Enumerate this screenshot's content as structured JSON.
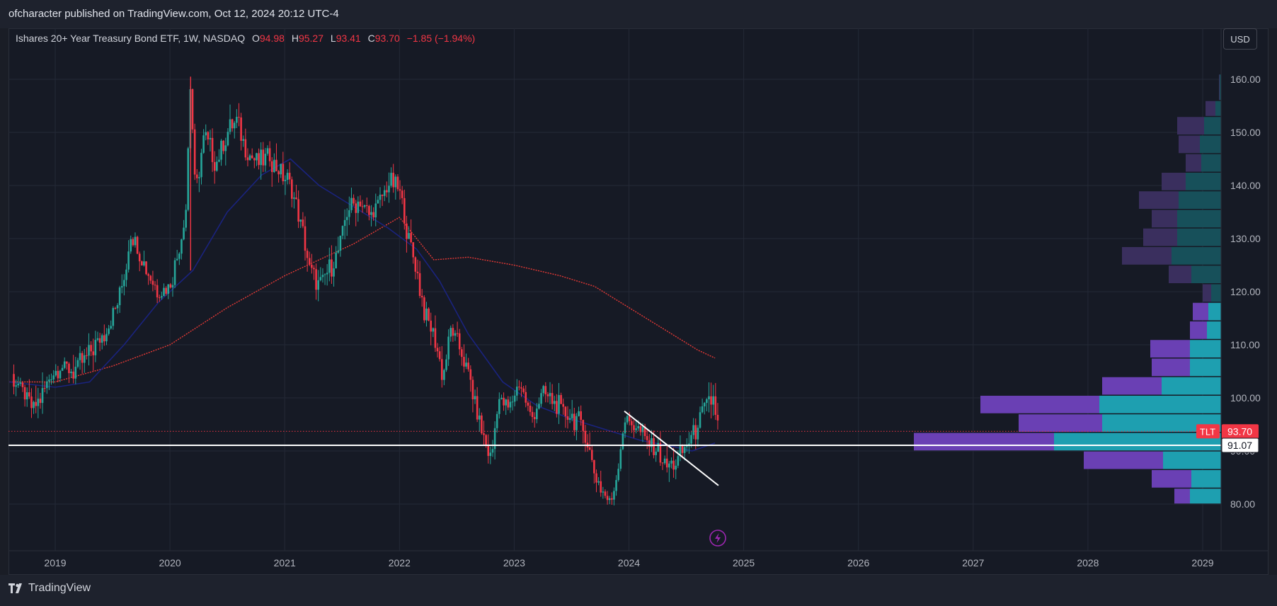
{
  "header": {
    "text": "ofcharacter published on TradingView.com, Oct 12, 2024 20:12 UTC-4"
  },
  "legend": {
    "title": "Ishares 20+ Year Treasury Bond ETF, 1W, NASDAQ",
    "o_label": "O",
    "o": "94.98",
    "h_label": "H",
    "h": "95.27",
    "l_label": "L",
    "l": "93.41",
    "c_label": "C",
    "c": "93.70",
    "change": "−1.85 (−1.94%)"
  },
  "currency_button": "USD",
  "footer": {
    "logo_text": "TradingView"
  },
  "colors": {
    "up": "#26a69a",
    "down": "#f23645",
    "sma_long": "#e53935",
    "sma_short": "#1a237e",
    "vp_up": "#1e9fb0",
    "vp_down": "#6a40b4"
  },
  "chart_data": {
    "type": "candlestick",
    "title": "Ishares 20+ Year Treasury Bond ETF, 1W, NASDAQ",
    "ticker": "TLT",
    "x_axis": {
      "ticks": [
        "2019",
        "2020",
        "2021",
        "2022",
        "2023",
        "2024",
        "2025",
        "2026",
        "2027",
        "2028",
        "2029"
      ],
      "range": [
        2018.6,
        2029.15
      ]
    },
    "y_axis": {
      "ticks": [
        "80.00",
        "90.00",
        "100.00",
        "110.00",
        "120.00",
        "130.00",
        "140.00",
        "150.00",
        "160.00"
      ],
      "range": [
        72,
        170
      ]
    },
    "last_price": {
      "label": "TLT",
      "value": "93.70",
      "y": 93.7
    },
    "horizontal_line": {
      "value": "91.07",
      "y": 91.07
    },
    "price_path": [
      [
        2018.62,
        104.5
      ],
      [
        2018.72,
        101
      ],
      [
        2018.8,
        98
      ],
      [
        2018.88,
        100
      ],
      [
        2018.95,
        104
      ],
      [
        2019.05,
        106
      ],
      [
        2019.15,
        105
      ],
      [
        2019.25,
        107
      ],
      [
        2019.35,
        110
      ],
      [
        2019.45,
        113
      ],
      [
        2019.55,
        118
      ],
      [
        2019.62,
        125
      ],
      [
        2019.65,
        131
      ],
      [
        2019.72,
        128
      ],
      [
        2019.8,
        124
      ],
      [
        2019.9,
        120
      ],
      [
        2020.0,
        121
      ],
      [
        2020.08,
        128
      ],
      [
        2020.14,
        136
      ],
      [
        2020.18,
        160
      ],
      [
        2020.22,
        138
      ],
      [
        2020.3,
        150
      ],
      [
        2020.4,
        144
      ],
      [
        2020.5,
        150
      ],
      [
        2020.58,
        152
      ],
      [
        2020.68,
        146
      ],
      [
        2020.78,
        144
      ],
      [
        2020.85,
        146
      ],
      [
        2020.95,
        143
      ],
      [
        2021.05,
        140
      ],
      [
        2021.15,
        132
      ],
      [
        2021.22,
        124
      ],
      [
        2021.3,
        121
      ],
      [
        2021.38,
        124
      ],
      [
        2021.46,
        127
      ],
      [
        2021.55,
        136
      ],
      [
        2021.65,
        137
      ],
      [
        2021.75,
        134
      ],
      [
        2021.85,
        138
      ],
      [
        2021.92,
        141
      ],
      [
        2022.0,
        139
      ],
      [
        2022.08,
        130
      ],
      [
        2022.15,
        124
      ],
      [
        2022.22,
        116
      ],
      [
        2022.3,
        112
      ],
      [
        2022.38,
        104
      ],
      [
        2022.45,
        113
      ],
      [
        2022.55,
        108
      ],
      [
        2022.62,
        103
      ],
      [
        2022.7,
        95
      ],
      [
        2022.8,
        88
      ],
      [
        2022.86,
        100
      ],
      [
        2022.95,
        98
      ],
      [
        2023.05,
        103
      ],
      [
        2023.15,
        96
      ],
      [
        2023.25,
        101
      ],
      [
        2023.35,
        99
      ],
      [
        2023.45,
        97
      ],
      [
        2023.55,
        96
      ],
      [
        2023.62,
        93
      ],
      [
        2023.7,
        86
      ],
      [
        2023.78,
        82
      ],
      [
        2023.84,
        80
      ],
      [
        2023.9,
        86
      ],
      [
        2023.96,
        96
      ],
      [
        2024.05,
        95
      ],
      [
        2024.15,
        92
      ],
      [
        2024.25,
        90
      ],
      [
        2024.32,
        87
      ],
      [
        2024.42,
        88
      ],
      [
        2024.5,
        91
      ],
      [
        2024.58,
        94
      ],
      [
        2024.65,
        98
      ],
      [
        2024.7,
        99
      ],
      [
        2024.74,
        100
      ],
      [
        2024.77,
        95
      ],
      [
        2024.79,
        93.7
      ]
    ],
    "sma_long": [
      [
        2018.6,
        103
      ],
      [
        2019.0,
        103
      ],
      [
        2019.5,
        106
      ],
      [
        2020.0,
        110
      ],
      [
        2020.5,
        117
      ],
      [
        2021.0,
        123
      ],
      [
        2021.3,
        126
      ],
      [
        2021.6,
        129
      ],
      [
        2022.0,
        134
      ],
      [
        2022.3,
        126
      ],
      [
        2022.6,
        126.5
      ],
      [
        2023.0,
        125
      ],
      [
        2023.4,
        123
      ],
      [
        2023.7,
        121
      ],
      [
        2024.0,
        117
      ],
      [
        2024.3,
        113
      ],
      [
        2024.6,
        109
      ],
      [
        2024.75,
        107.5
      ]
    ],
    "sma_short": [
      [
        2018.6,
        103
      ],
      [
        2019.0,
        102
      ],
      [
        2019.3,
        103
      ],
      [
        2019.6,
        110
      ],
      [
        2019.9,
        118
      ],
      [
        2020.2,
        124
      ],
      [
        2020.5,
        135
      ],
      [
        2020.8,
        142
      ],
      [
        2021.05,
        145
      ],
      [
        2021.3,
        140
      ],
      [
        2021.6,
        136
      ],
      [
        2021.9,
        132
      ],
      [
        2022.15,
        128
      ],
      [
        2022.35,
        122
      ],
      [
        2022.6,
        112
      ],
      [
        2022.9,
        103
      ],
      [
        2023.2,
        98.5
      ],
      [
        2023.5,
        96
      ],
      [
        2023.8,
        94
      ],
      [
        2024.1,
        92
      ],
      [
        2024.35,
        91
      ],
      [
        2024.55,
        90
      ],
      [
        2024.75,
        91.5
      ]
    ],
    "trendline": {
      "from": [
        2023.96,
        97.5
      ],
      "to": [
        2024.78,
        83.5
      ]
    },
    "volume_profile": [
      {
        "lo": 80,
        "hi": 83,
        "up": 2.2,
        "down": 1.1
      },
      {
        "lo": 83,
        "hi": 86.5,
        "up": 2.1,
        "down": 2.8
      },
      {
        "lo": 86.5,
        "hi": 90,
        "up": 4.1,
        "down": 5.6
      },
      {
        "lo": 90,
        "hi": 93.5,
        "up": 11.8,
        "down": 9.9
      },
      {
        "lo": 93.5,
        "hi": 97,
        "up": 8.4,
        "down": 5.9
      },
      {
        "lo": 97,
        "hi": 100.5,
        "up": 8.6,
        "down": 8.4
      },
      {
        "lo": 100.5,
        "hi": 104,
        "up": 4.2,
        "down": 4.2
      },
      {
        "lo": 104,
        "hi": 107.5,
        "up": 2.2,
        "down": 2.7
      },
      {
        "lo": 107.5,
        "hi": 111,
        "up": 2.2,
        "down": 2.8
      },
      {
        "lo": 111,
        "hi": 114.5,
        "up": 1,
        "down": 1.2
      },
      {
        "lo": 114.5,
        "hi": 118,
        "up": 0.9,
        "down": 1.1
      },
      {
        "lo": 118,
        "hi": 121.5,
        "up": 0.7,
        "down": 0.6
      },
      {
        "lo": 121.5,
        "hi": 125,
        "up": 2.1,
        "down": 1.6
      },
      {
        "lo": 125,
        "hi": 128.5,
        "up": 3.5,
        "down": 3.5
      },
      {
        "lo": 128.5,
        "hi": 132,
        "up": 3.1,
        "down": 2.4
      },
      {
        "lo": 132,
        "hi": 135.5,
        "up": 3.1,
        "down": 1.8
      },
      {
        "lo": 135.5,
        "hi": 139,
        "up": 3,
        "down": 2.8
      },
      {
        "lo": 139,
        "hi": 142.5,
        "up": 2.5,
        "down": 1.7
      },
      {
        "lo": 142.5,
        "hi": 146,
        "up": 1.4,
        "down": 1.1
      },
      {
        "lo": 146,
        "hi": 149.5,
        "up": 1.5,
        "down": 1.5
      },
      {
        "lo": 149.5,
        "hi": 153,
        "up": 1.2,
        "down": 1.9
      },
      {
        "lo": 153,
        "hi": 156,
        "up": 0.4,
        "down": 0.7
      },
      {
        "lo": 156,
        "hi": 161,
        "up": 0.1,
        "down": 0.05
      }
    ]
  }
}
